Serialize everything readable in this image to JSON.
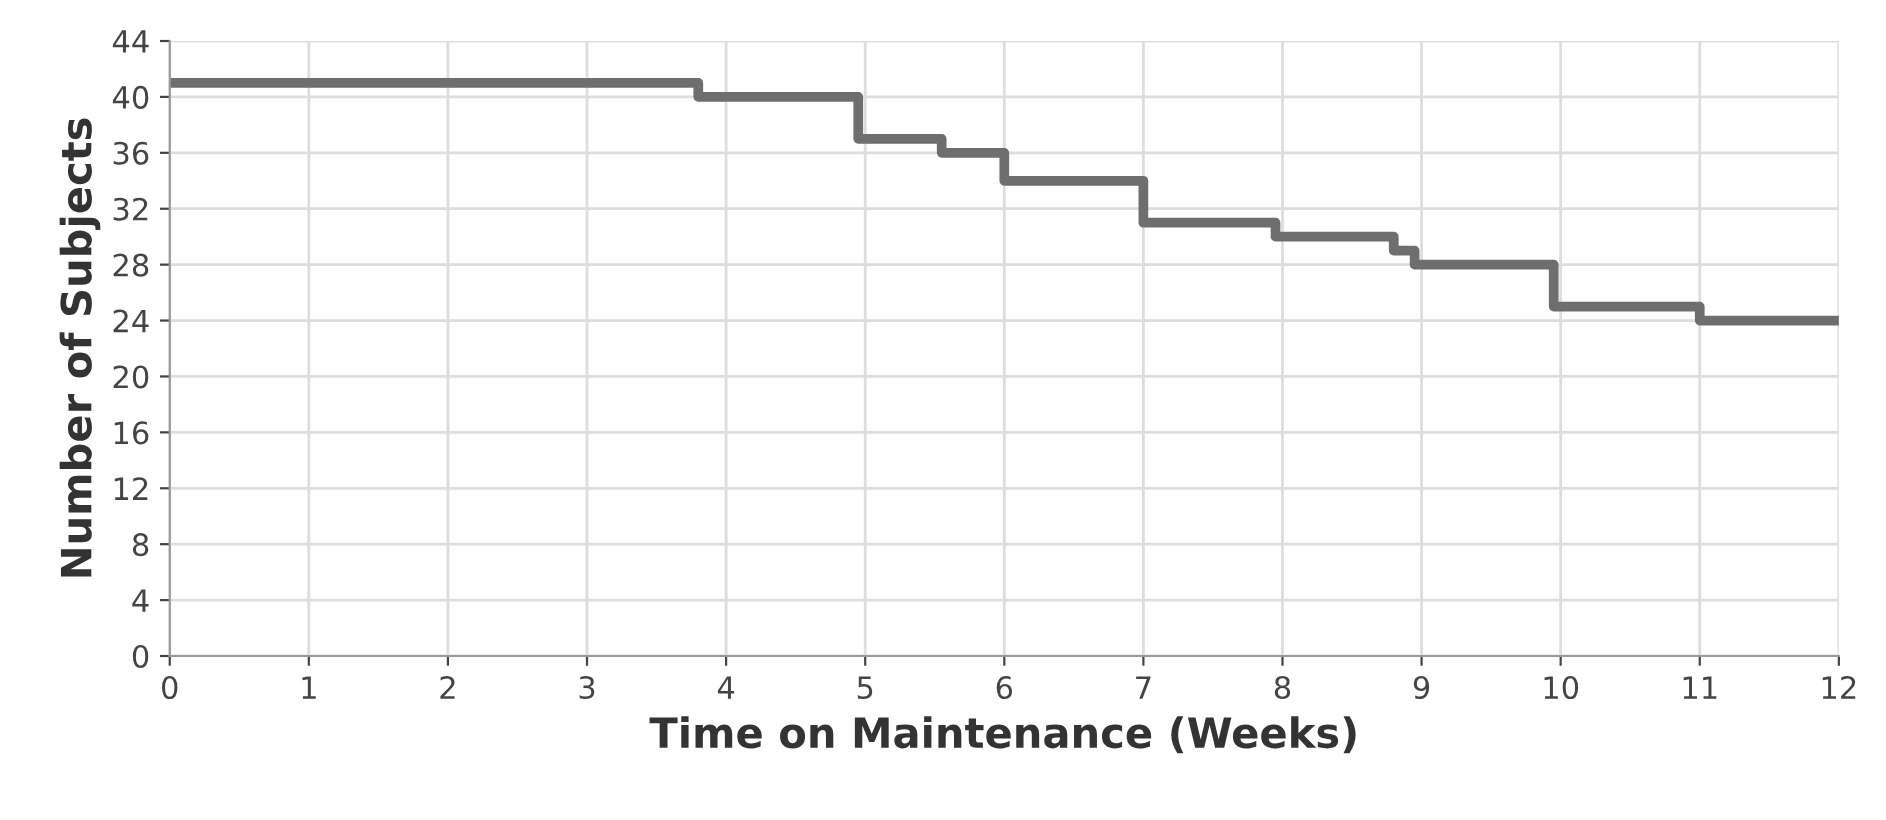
{
  "chart_data": {
    "type": "step",
    "xlabel": "Time on Maintenance (Weeks)",
    "ylabel": "Number of Subjects",
    "x": [
      0,
      3.8,
      4.95,
      5.55,
      6,
      7,
      7.95,
      8.8,
      8.95,
      9.95,
      11,
      12
    ],
    "series": [
      {
        "color": "#6e6e6e",
        "values": [
          41,
          40,
          37,
          36,
          34,
          31,
          30,
          29,
          28,
          25,
          24,
          24
        ]
      }
    ],
    "xlim": [
      0,
      12
    ],
    "ylim": [
      0,
      44
    ],
    "xticks": [
      0,
      1,
      2,
      3,
      4,
      5,
      6,
      7,
      8,
      9,
      10,
      11,
      12
    ],
    "yticks": [
      0,
      4,
      8,
      12,
      16,
      20,
      24,
      28,
      32,
      36,
      40,
      44
    ],
    "grid": true,
    "marker": "none",
    "line_style": "solid"
  }
}
